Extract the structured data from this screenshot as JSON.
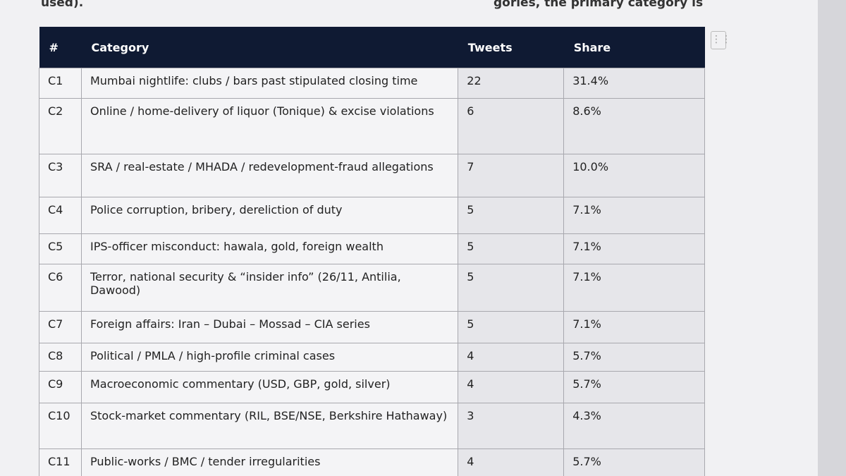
{
  "header": {
    "left_text": "used).",
    "right_text": "gories, the primary category is"
  },
  "table": {
    "columns": [
      "#",
      "Category",
      "Tweets",
      "Share"
    ],
    "rows": [
      [
        "C1",
        "Mumbai nightlife: clubs / bars past stipulated closing time",
        22,
        "31.4%"
      ],
      [
        "C2",
        "Online / home-delivery of liquor (Tonique) & excise violations",
        6,
        "8.6%"
      ],
      [
        "C3",
        "SRA / real-estate / MHADA / redevelopment-fraud allegations",
        7,
        "10.0%"
      ],
      [
        "C4",
        "Police corruption, bribery, dereliction of duty",
        5,
        "7.1%"
      ],
      [
        "C5",
        "IPS-officer misconduct: hawala, gold, foreign wealth",
        5,
        "7.1%"
      ],
      [
        "C6",
        "Terror, national security & “insider info” (26/11, Antilia, Dawood)",
        5,
        "7.1%"
      ],
      [
        "C7",
        "Foreign affairs: Iran – Dubai – Mossad – CIA series",
        5,
        "7.1%"
      ],
      [
        "C8",
        "Political / PMLA / high-profile criminal cases",
        4,
        "5.7%"
      ],
      [
        "C9",
        "Macroeconomic commentary (USD, GBP, gold, silver)",
        4,
        "5.7%"
      ],
      [
        "C10",
        "Stock-market commentary (RIL, BSE/NSE, Berkshire Hathaway)",
        3,
        "4.3%"
      ],
      [
        "C11",
        "Public-works / BMC / tender irregularities",
        4,
        "5.7%"
      ]
    ]
  }
}
